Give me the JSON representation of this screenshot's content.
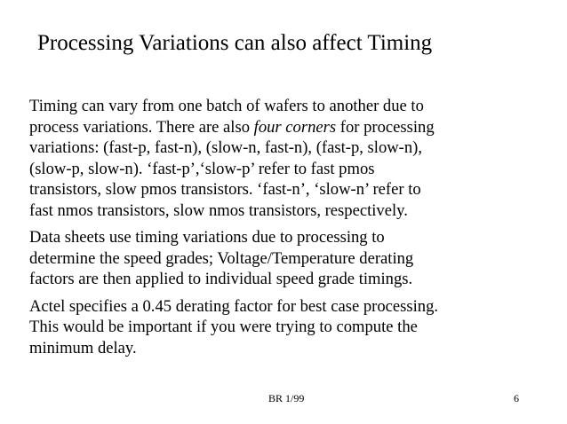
{
  "slide": {
    "title": "Processing Variations can also affect Timing",
    "paragraphs": [
      {
        "lines": [
          [
            "Timing can vary from one batch of wafers to another due to"
          ],
          [
            "process variations.  There are also ",
            "four corners",
            " for processing"
          ],
          [
            "variations: (fast-p, fast-n), (slow-n, fast-n), (fast-p, slow-n),"
          ],
          [
            "(slow-p, slow-n).  ‘fast-p’,‘slow-p’ refer to fast pmos"
          ],
          [
            "transistors, slow pmos transistors.  ‘fast-n’, ‘slow-n’ refer to"
          ],
          [
            "fast nmos transistors, slow nmos transistors, respectively."
          ]
        ]
      },
      {
        "lines": [
          [
            "Data sheets use timing variations due to processing to"
          ],
          [
            "determine the speed grades;  Voltage/Temperature derating"
          ],
          [
            "factors are then applied to individual speed grade timings."
          ]
        ]
      },
      {
        "lines": [
          [
            "Actel specifies a 0.45 derating factor for best case processing."
          ],
          [
            "This would be important if you were trying to compute the"
          ],
          [
            "minimum delay."
          ]
        ]
      }
    ],
    "footer_center": "BR 1/99",
    "page_number": "6"
  }
}
